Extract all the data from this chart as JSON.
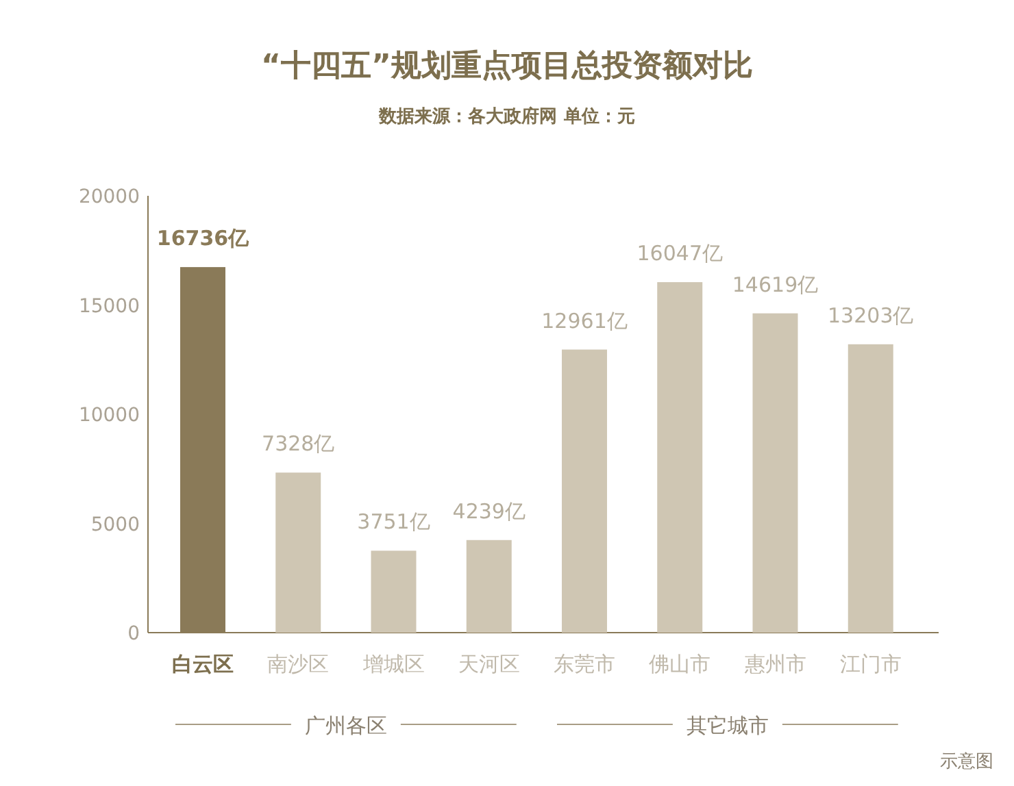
{
  "chart_data": {
    "type": "bar",
    "title": "“十四五”规划重点项目总投资额对比",
    "subtitle": "数据来源：各大政府网  单位：元",
    "categories": [
      "白云区",
      "南沙区",
      "增城区",
      "天河区",
      "东莞市",
      "佛山市",
      "惠州市",
      "江门市"
    ],
    "values": [
      16736,
      7328,
      3751,
      4239,
      12961,
      16047,
      14619,
      13203
    ],
    "colors": [
      "#8a7a58",
      "#cfc6b3",
      "#cfc6b3",
      "#cfc6b3",
      "#cfc6b3",
      "#cfc6b3",
      "#cfc6b3",
      "#cfc6b3"
    ],
    "value_labels": [
      "16736亿",
      "7328亿",
      "3751亿",
      "4239亿",
      "12961亿",
      "16047亿",
      "14619亿",
      "13203亿"
    ],
    "ylim": [
      0,
      20000
    ],
    "yticks": [
      0,
      5000,
      10000,
      15000,
      20000
    ],
    "grid": false,
    "annotations": [
      "广州各区",
      "其它城市",
      "示意图"
    ]
  }
}
